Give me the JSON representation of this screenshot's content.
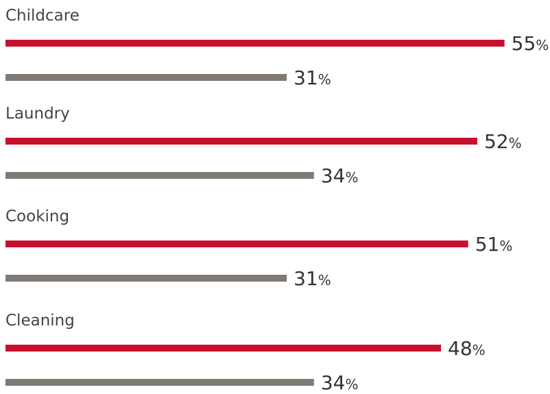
{
  "chart_data": {
    "type": "bar",
    "orientation": "horizontal",
    "value_suffix": "%",
    "categories": [
      "Childcare",
      "Laundry",
      "Cooking",
      "Cleaning"
    ],
    "series": [
      {
        "color": "#c8102e",
        "values": [
          55,
          52,
          51,
          48
        ]
      },
      {
        "color": "#7f7b74",
        "values": [
          31,
          34,
          31,
          34
        ]
      }
    ],
    "xlim": [
      0,
      60
    ],
    "grid": false,
    "legend": "none"
  }
}
